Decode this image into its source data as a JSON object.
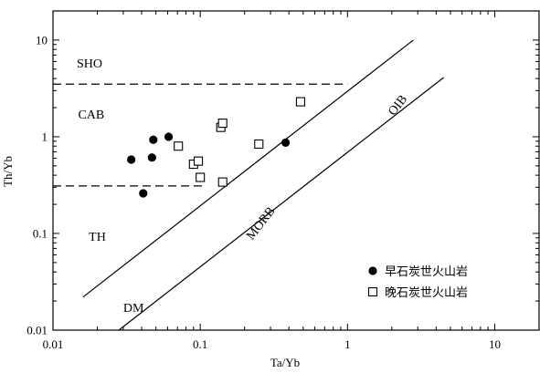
{
  "chart_data": {
    "type": "scatter",
    "title": "",
    "xlabel": "Ta/Yb",
    "ylabel": "Th/Yb",
    "x_scale": "log",
    "y_scale": "log",
    "xlim": [
      0.01,
      20
    ],
    "ylim": [
      0.01,
      20
    ],
    "x_ticks": [
      {
        "value": 0.01,
        "label": "0.01"
      },
      {
        "value": 0.1,
        "label": "0.1"
      },
      {
        "value": 1,
        "label": "1"
      },
      {
        "value": 10,
        "label": "10"
      }
    ],
    "y_ticks": [
      {
        "value": 0.01,
        "label": "0.01"
      },
      {
        "value": 0.1,
        "label": "0.1"
      },
      {
        "value": 1,
        "label": "1"
      },
      {
        "value": 10,
        "label": "10"
      }
    ],
    "grid": false,
    "legend_position": "bottom-right",
    "series": [
      {
        "name": "早石炭世火山岩",
        "marker": "filled-circle",
        "color": "#000000",
        "points": [
          {
            "x": 0.034,
            "y": 0.58
          },
          {
            "x": 0.047,
            "y": 0.61
          },
          {
            "x": 0.048,
            "y": 0.93
          },
          {
            "x": 0.061,
            "y": 1.0
          },
          {
            "x": 0.041,
            "y": 0.26
          },
          {
            "x": 0.38,
            "y": 0.87
          }
        ]
      },
      {
        "name": "晚石炭世火山岩",
        "marker": "open-square",
        "color": "#000000",
        "points": [
          {
            "x": 0.071,
            "y": 0.8
          },
          {
            "x": 0.09,
            "y": 0.52
          },
          {
            "x": 0.097,
            "y": 0.56
          },
          {
            "x": 0.1,
            "y": 0.38
          },
          {
            "x": 0.138,
            "y": 1.25
          },
          {
            "x": 0.142,
            "y": 1.38
          },
          {
            "x": 0.142,
            "y": 0.34
          },
          {
            "x": 0.25,
            "y": 0.84
          },
          {
            "x": 0.48,
            "y": 2.3
          }
        ]
      }
    ],
    "reference_lines": [
      {
        "name": "mantle-array-upper",
        "style": "solid",
        "points": [
          {
            "x": 0.016,
            "y": 0.022
          },
          {
            "x": 2.8,
            "y": 10.0
          }
        ]
      },
      {
        "name": "mantle-array-lower",
        "style": "solid",
        "points": [
          {
            "x": 0.028,
            "y": 0.01
          },
          {
            "x": 4.5,
            "y": 4.1
          }
        ]
      },
      {
        "name": "sho-cab-boundary",
        "style": "dashed",
        "points": [
          {
            "x": 0.01,
            "y": 3.5
          },
          {
            "x": 1.0,
            "y": 3.5
          }
        ]
      },
      {
        "name": "cab-th-boundary",
        "style": "dashed",
        "points": [
          {
            "x": 0.01,
            "y": 0.31
          },
          {
            "x": 0.11,
            "y": 0.31
          }
        ]
      }
    ],
    "annotations": [
      {
        "text": "SHO",
        "x": 0.0145,
        "y": 5.2,
        "rotate": 0
      },
      {
        "text": "CAB",
        "x": 0.0148,
        "y": 1.55,
        "rotate": 0
      },
      {
        "text": "TH",
        "x": 0.0175,
        "y": 0.084,
        "rotate": 0
      },
      {
        "text": "DM",
        "x": 0.03,
        "y": 0.0155,
        "rotate": 0
      },
      {
        "text": "MORB",
        "x": 0.27,
        "y": 0.12,
        "rotate": -52
      },
      {
        "text": "OIB",
        "x": 2.3,
        "y": 2.0,
        "rotate": -52
      }
    ]
  }
}
